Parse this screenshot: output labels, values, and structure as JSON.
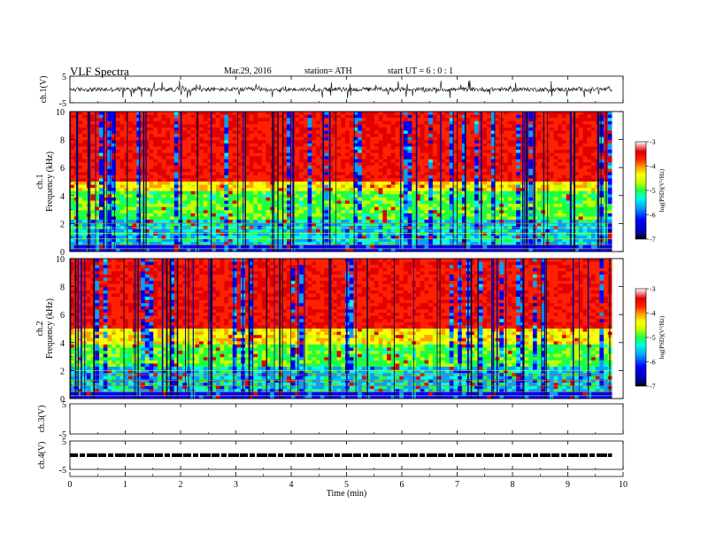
{
  "header": {
    "title": "VLF  Spectra",
    "date": "Mar.29, 2016",
    "station": "station= ATH",
    "start": "start  UT  =    6  : 0  : 1"
  },
  "chart_data": [
    {
      "type": "line",
      "panel": "ch1-waveform",
      "ylabel": "ch.1(V)",
      "yticks": [
        "5",
        "-5"
      ],
      "ylim": [
        -5,
        5
      ],
      "xlim": [
        0,
        10
      ],
      "color": "#000000"
    },
    {
      "type": "heatmap",
      "panel": "ch1-spectrogram",
      "ylabel": "ch.1\nFrequency  (kHz)",
      "ylabel_line1": "ch.1",
      "ylabel_line2": "Frequency  (kHz)",
      "yticks": [
        "0",
        "2",
        "4",
        "6",
        "8",
        "10"
      ],
      "ylim": [
        0,
        10
      ],
      "xlim": [
        0,
        10
      ],
      "colorbar": {
        "label": "log(PSD)(V²/Hz)",
        "ticks": [
          "-3",
          "-4",
          "-5",
          "-6",
          "-7"
        ],
        "range": [
          -7,
          -3
        ]
      }
    },
    {
      "type": "heatmap",
      "panel": "ch2-spectrogram",
      "ylabel_line1": "ch.2",
      "ylabel_line2": "Frequency  (kHz)",
      "yticks": [
        "0",
        "2",
        "4",
        "6",
        "8",
        "10"
      ],
      "ylim": [
        0,
        10
      ],
      "xlim": [
        0,
        10
      ],
      "colorbar": {
        "label": "log(PSD)(V²/Hz)",
        "ticks": [
          "-3",
          "-4",
          "-5",
          "-6",
          "-7"
        ],
        "range": [
          -7,
          -3
        ]
      }
    },
    {
      "type": "line",
      "panel": "ch3-waveform",
      "ylabel": "ch.3(V)",
      "yticks": [
        "5",
        "-5"
      ],
      "ylim": [
        -5,
        5
      ],
      "xlim": [
        0,
        10
      ]
    },
    {
      "type": "line",
      "panel": "ch4-waveform",
      "ylabel": "ch.4(V)",
      "yticks": [
        "5",
        "-5"
      ],
      "ylim": [
        -5,
        5
      ],
      "xlim": [
        0,
        10
      ],
      "level": 0
    }
  ],
  "xaxis": {
    "label": "Time  (min)",
    "ticks": [
      "0",
      "1",
      "2",
      "3",
      "4",
      "5",
      "6",
      "7",
      "8",
      "9",
      "10"
    ],
    "range": [
      0,
      10
    ],
    "data_end": 9.8
  },
  "colors": {
    "spectrum": [
      "#0000a0",
      "#0000ff",
      "#00a0ff",
      "#00ffe0",
      "#20ff40",
      "#c0ff00",
      "#ffff00",
      "#ffa000",
      "#ff2000",
      "#e00000",
      "#ffffff"
    ]
  }
}
